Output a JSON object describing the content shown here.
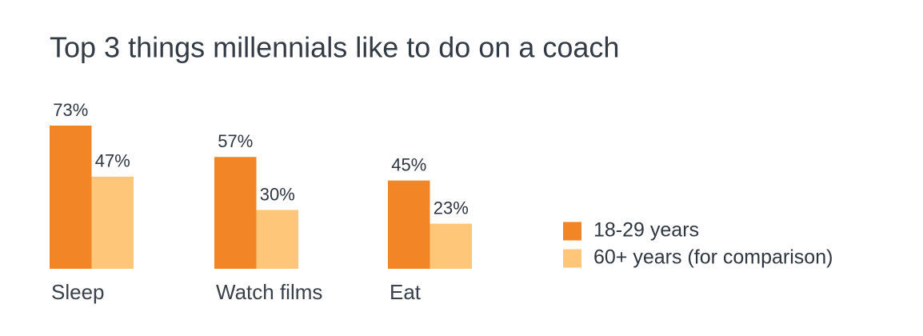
{
  "chart_data": {
    "type": "bar",
    "title": "Top 3 things millennials like to do on a coach",
    "categories": [
      "Sleep",
      "Watch films",
      "Eat"
    ],
    "series": [
      {
        "name": "18-29 years",
        "color": "#f28526",
        "values": [
          73,
          57,
          45
        ],
        "value_labels": [
          "73%",
          "57%",
          "45%"
        ]
      },
      {
        "name": "60+ years (for comparison)",
        "color": "#fec678",
        "values": [
          47,
          30,
          23
        ],
        "value_labels": [
          "47%",
          "30%",
          "23%"
        ]
      }
    ],
    "legend": "right"
  }
}
